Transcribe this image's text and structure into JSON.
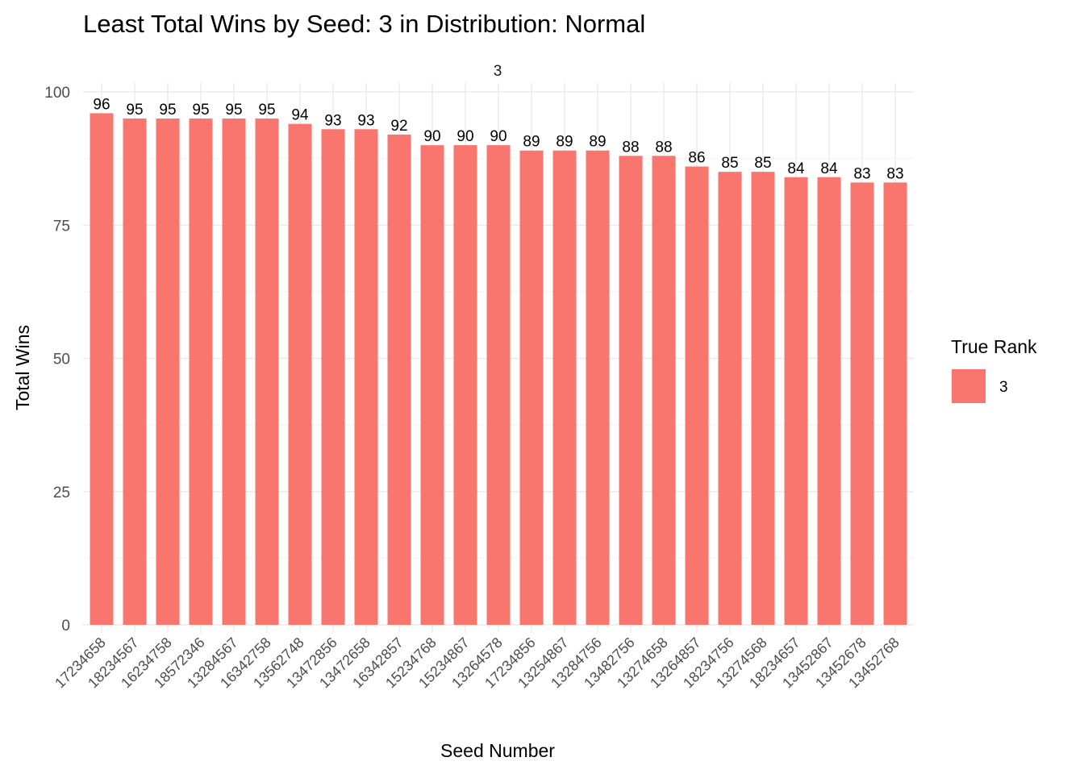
{
  "chart_data": {
    "type": "bar",
    "title": "Least Total Wins by Seed: 3 in Distribution: Normal",
    "facet_label": "3",
    "xlabel": "Seed Number",
    "ylabel": "Total Wins",
    "ylim": [
      0,
      100
    ],
    "yticks": [
      0,
      25,
      50,
      75,
      100
    ],
    "grid": true,
    "categories": [
      "17234658",
      "18234567",
      "16234758",
      "18572346",
      "13284567",
      "16342758",
      "13562748",
      "13472856",
      "13472658",
      "16342857",
      "15234768",
      "15234867",
      "13264578",
      "17234856",
      "13254867",
      "13284756",
      "13482756",
      "13274658",
      "13264857",
      "18234756",
      "13274568",
      "18234657",
      "13452867",
      "13452678",
      "13452768"
    ],
    "series": [
      {
        "name": "3",
        "values": [
          96,
          95,
          95,
          95,
          95,
          95,
          94,
          93,
          93,
          92,
          90,
          90,
          90,
          89,
          89,
          89,
          88,
          88,
          86,
          85,
          85,
          84,
          84,
          83,
          83
        ],
        "color": "#F8766D"
      }
    ],
    "legend": {
      "title": "True Rank",
      "position": "right",
      "items": [
        "3"
      ]
    }
  }
}
